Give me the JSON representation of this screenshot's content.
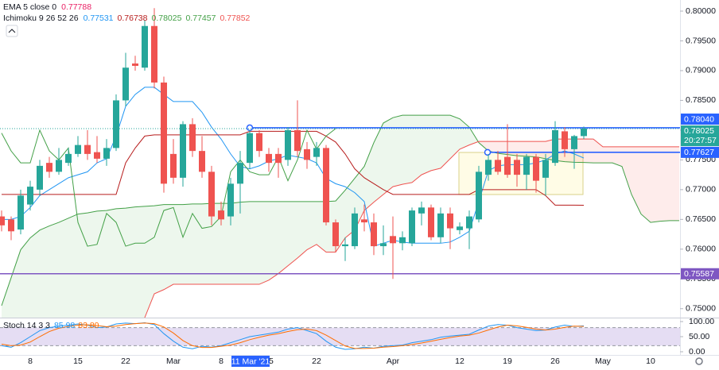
{
  "chart_data": [
    {
      "type": "candlestick",
      "categories": [
        null,
        null,
        null,
        "8",
        null,
        null,
        null,
        null,
        "15",
        null,
        null,
        null,
        null,
        "22",
        null,
        null,
        null,
        null,
        "Mar",
        null,
        null,
        null,
        null,
        "8",
        null,
        null,
        "11 Mar '21",
        null,
        "15",
        null,
        null,
        null,
        null,
        "22",
        null,
        null,
        null,
        null,
        null,
        null,
        null,
        "Apr",
        null,
        null,
        null,
        null,
        null,
        null,
        "12",
        null,
        null,
        null,
        null,
        "19",
        null,
        null,
        null,
        null,
        "26",
        null,
        null,
        null,
        null,
        "May",
        null,
        null,
        null,
        null,
        "10",
        null,
        null,
        null
      ],
      "open": [
        0.7655,
        0.765,
        0.7633,
        0.7675,
        0.77,
        0.7745,
        0.773,
        0.7745,
        0.776,
        0.7775,
        0.7763,
        0.7752,
        0.777,
        0.785,
        0.7912,
        0.7905,
        0.7975,
        0.788,
        0.776,
        0.772,
        0.781,
        0.7765,
        0.773,
        0.7665,
        0.7655,
        0.771,
        0.7745,
        0.7795,
        0.776,
        0.776,
        0.775,
        0.78,
        0.7768,
        0.7755,
        0.777,
        0.7645,
        0.7605,
        0.7605,
        0.765,
        0.7645,
        0.7605,
        0.7622,
        0.761,
        0.761,
        0.766,
        0.767,
        0.762,
        0.766,
        0.7632,
        0.7635,
        0.765,
        0.7725,
        0.775,
        0.7755,
        0.775,
        0.7725,
        0.7755,
        0.772,
        0.7745,
        0.7798,
        0.7768,
        0.779,
        null,
        null,
        null,
        null,
        null,
        null,
        null,
        null,
        null,
        null
      ],
      "high": [
        0.7665,
        0.7655,
        0.77,
        0.7715,
        0.775,
        0.7755,
        0.777,
        0.777,
        0.779,
        0.78,
        0.779,
        0.7785,
        0.786,
        0.793,
        0.7925,
        0.7985,
        0.8005,
        0.789,
        0.7785,
        0.7815,
        0.782,
        0.779,
        0.774,
        0.768,
        0.772,
        0.7765,
        0.78,
        0.78,
        0.777,
        0.777,
        0.7805,
        0.785,
        0.778,
        0.778,
        0.7775,
        0.765,
        0.762,
        0.767,
        0.7675,
        0.766,
        0.764,
        0.7655,
        0.763,
        0.767,
        0.768,
        0.7675,
        0.767,
        0.767,
        0.7645,
        0.7665,
        0.774,
        0.776,
        0.7765,
        0.781,
        0.776,
        0.776,
        0.776,
        0.776,
        0.7815,
        0.7805,
        0.7792,
        0.7806,
        null,
        null,
        null,
        null,
        null,
        null,
        null,
        null,
        null,
        null
      ],
      "low": [
        0.763,
        0.7615,
        0.7625,
        0.7665,
        0.769,
        0.772,
        0.7725,
        0.774,
        0.7755,
        0.775,
        0.7745,
        0.774,
        0.7765,
        0.784,
        0.79,
        0.79,
        0.787,
        0.7695,
        0.771,
        0.7705,
        0.7755,
        0.772,
        0.764,
        0.764,
        0.764,
        0.766,
        0.7735,
        0.7755,
        0.773,
        0.772,
        0.774,
        0.7755,
        0.7735,
        0.774,
        0.764,
        0.7595,
        0.758,
        0.76,
        0.763,
        0.759,
        0.759,
        0.755,
        0.7598,
        0.7605,
        0.764,
        0.7615,
        0.761,
        0.76,
        0.7625,
        0.76,
        0.7645,
        0.7715,
        0.7725,
        0.772,
        0.7705,
        0.77,
        0.7695,
        0.769,
        0.774,
        0.7755,
        0.7735,
        0.7785,
        null,
        null,
        null,
        null,
        null,
        null,
        null,
        null,
        null,
        null
      ],
      "close": [
        0.764,
        0.763,
        0.769,
        0.7705,
        0.774,
        0.773,
        0.775,
        0.776,
        0.7775,
        0.776,
        0.7752,
        0.777,
        0.785,
        0.7905,
        0.7908,
        0.7975,
        0.788,
        0.771,
        0.772,
        0.781,
        0.7765,
        0.773,
        0.7655,
        0.765,
        0.771,
        0.7745,
        0.7795,
        0.7765,
        0.7745,
        0.7745,
        0.78,
        0.7765,
        0.775,
        0.777,
        0.7645,
        0.7605,
        0.7608,
        0.766,
        0.7645,
        0.7605,
        0.761,
        0.761,
        0.762,
        0.7665,
        0.767,
        0.762,
        0.766,
        0.7635,
        0.7638,
        0.7655,
        0.773,
        0.775,
        0.773,
        0.7725,
        0.7725,
        0.7755,
        0.7715,
        0.775,
        0.78,
        0.7768,
        0.779,
        0.78025,
        null,
        null,
        null,
        null,
        null,
        null,
        null,
        null,
        null,
        null
      ],
      "up_color": "#26a69a",
      "down_color": "#ef5350",
      "ylim": [
        0.7485,
        0.8012
      ],
      "yticks": [
        {
          "value": 0.75,
          "label": "0.75000"
        },
        {
          "value": 0.755,
          "label": "0.75500"
        },
        {
          "value": 0.76,
          "label": "0.76000"
        },
        {
          "value": 0.765,
          "label": "0.76500"
        },
        {
          "value": 0.77,
          "label": "0.77000"
        },
        {
          "value": 0.775,
          "label": "0.77500"
        },
        {
          "value": 0.78,
          "label": "0.78000"
        },
        {
          "value": 0.785,
          "label": "0.78500"
        },
        {
          "value": 0.79,
          "label": "0.79000"
        },
        {
          "value": 0.795,
          "label": "0.79500"
        },
        {
          "value": 0.8,
          "label": "0.80000"
        }
      ],
      "cloud": {
        "span_a": [
          0.7505,
          0.7552,
          0.7599,
          0.7619,
          0.7632,
          0.7639,
          0.7645,
          0.7652,
          0.7659,
          0.7661,
          0.7664,
          0.7665,
          0.7668,
          0.7669,
          0.7671,
          0.7672,
          0.7673,
          0.7675,
          0.7675,
          0.7675,
          0.7676,
          0.7676,
          0.7677,
          0.7677,
          0.7677,
          0.7679,
          0.768,
          0.768,
          0.768,
          0.768,
          0.768,
          0.768,
          0.768,
          0.768,
          0.768,
          0.7681,
          0.7699,
          0.7719,
          0.7739,
          0.7779,
          0.7812,
          0.7821,
          0.7825,
          0.7825,
          0.7825,
          0.7825,
          0.7825,
          0.7825,
          0.7819,
          0.7805,
          0.7779,
          0.7765,
          0.7761,
          0.7759,
          0.7757,
          0.7756,
          0.7755,
          0.7752,
          0.7749,
          0.7747,
          0.7746,
          0.77457,
          0.7745,
          0.7745,
          0.7745,
          0.7739,
          0.7692,
          0.7659,
          0.7645,
          0.7647,
          0.7648,
          0.7648
        ],
        "span_b": [
          0.747,
          0.747,
          0.747,
          0.747,
          0.747,
          0.747,
          0.747,
          0.747,
          0.747,
          0.747,
          0.747,
          0.747,
          0.747,
          0.747,
          0.747,
          0.7485,
          0.7525,
          0.7532,
          0.7541,
          0.7541,
          0.7541,
          0.7541,
          0.7541,
          0.7541,
          0.7541,
          0.7541,
          0.7541,
          0.7541,
          0.7548,
          0.7559,
          0.7572,
          0.7585,
          0.7599,
          0.7608,
          0.7595,
          0.7595,
          0.7619,
          0.7632,
          0.7665,
          0.7679,
          0.7692,
          0.7705,
          0.7709,
          0.7712,
          0.7725,
          0.7732,
          0.7736,
          0.7752,
          0.7768,
          0.7775,
          0.7781,
          0.7781,
          0.7781,
          0.7781,
          0.7781,
          0.7781,
          0.7781,
          0.7781,
          0.7785,
          0.7785,
          0.7785,
          0.77852,
          0.7785,
          0.7772,
          0.7772,
          0.7772,
          0.7772,
          0.7772,
          0.7772,
          0.7772,
          0.7772,
          0.7772
        ],
        "a_color": "#43a047",
        "b_color": "#ef5350",
        "up_fill": "#4caf50",
        "down_fill": "#f44336"
      },
      "lines": [
        {
          "color": "#2196f3",
          "values": [
            0.765,
            0.765,
            0.7655,
            0.767,
            0.769,
            0.77,
            0.771,
            0.772,
            0.7725,
            0.773,
            0.7745,
            0.7752,
            0.779,
            0.784,
            0.786,
            0.7872,
            0.7872,
            0.786,
            0.7848,
            0.7848,
            0.7848,
            0.783,
            0.7805,
            0.7785,
            0.776,
            0.7739,
            0.7735,
            0.774,
            0.7748,
            0.7752,
            0.7758,
            0.7755,
            0.7752,
            0.7745,
            0.7719,
            0.771,
            0.7705,
            0.7695,
            0.768,
            0.7605,
            0.761,
            0.7615,
            0.7612,
            0.761,
            0.761,
            0.761,
            0.761,
            0.7612,
            0.762,
            0.763,
            0.768,
            0.7732,
            0.774,
            0.7742,
            0.7742,
            0.7742,
            0.7745,
            0.775,
            0.776,
            0.7765,
            0.776,
            0.77531,
            null,
            null,
            null,
            null,
            null,
            null,
            null,
            null,
            null,
            null
          ]
        },
        {
          "color": "#b71c1c",
          "values": [
            0.7692,
            0.7692,
            0.7692,
            0.7692,
            0.7692,
            0.7692,
            0.7692,
            0.7692,
            0.7692,
            0.7692,
            0.7692,
            0.7692,
            0.7692,
            0.7745,
            0.777,
            0.779,
            0.7792,
            0.7792,
            0.7792,
            0.7792,
            0.7792,
            0.7792,
            0.7792,
            0.7792,
            0.7792,
            0.7792,
            0.7798,
            0.7798,
            0.7798,
            0.7798,
            0.7798,
            0.7798,
            0.7798,
            0.7798,
            0.779,
            0.778,
            0.776,
            0.7735,
            0.772,
            0.771,
            0.77,
            0.7692,
            0.7692,
            0.7692,
            0.7692,
            0.7692,
            0.7692,
            0.7692,
            0.7692,
            0.7692,
            0.77,
            0.77,
            0.77,
            0.77,
            0.77,
            0.77,
            0.77,
            0.769,
            0.7674,
            0.7674,
            0.7674,
            0.76738,
            null,
            null,
            null,
            null,
            null,
            null,
            null,
            null,
            null,
            null
          ]
        },
        {
          "color": "#43a047",
          "values": [
            0.7795,
            0.7765,
            0.7745,
            0.7745,
            0.78,
            0.7765,
            0.775,
            0.777,
            0.7645,
            0.7605,
            0.7608,
            0.766,
            0.7645,
            0.7605,
            0.761,
            0.761,
            0.762,
            0.7665,
            0.767,
            0.762,
            0.766,
            0.7635,
            0.7638,
            0.7655,
            0.773,
            0.775,
            0.773,
            0.7725,
            0.7725,
            0.7755,
            0.7715,
            0.775,
            0.78,
            0.7768,
            0.779,
            0.78025,
            null,
            null,
            null,
            null,
            null,
            null,
            null,
            null,
            null,
            null,
            null,
            null,
            null,
            null,
            null,
            null,
            null,
            null,
            null,
            null,
            null,
            null,
            null,
            null,
            null,
            null,
            null,
            null,
            null,
            null,
            null,
            null,
            null,
            null,
            null,
            null
          ]
        }
      ],
      "hlines": [
        {
          "value": 0.7804,
          "label": "0.78040",
          "color": "#2962ff"
        },
        {
          "value": 0.77627,
          "label": "0.77627",
          "color": "#2962ff"
        },
        {
          "value": 0.75587,
          "label": "0.75587",
          "color": "#7e57c2"
        }
      ],
      "last": {
        "value": 0.78025,
        "label": "0.78025",
        "time": "20:27:57",
        "color": "#26a69a"
      },
      "indicators": [
        {
          "label": "EMA 5 close 0",
          "readings": [
            0.77788
          ],
          "colors": [
            "#e91e63"
          ]
        },
        {
          "label": "Ichimoku 9 26 52 26",
          "readings": [
            0.77531,
            0.76738,
            0.78025,
            0.77457,
            0.77852
          ],
          "colors": [
            "#2196f3",
            "#b71c1c",
            "#43a047",
            "#43a047",
            "#ef5350"
          ]
        }
      ]
    },
    {
      "type": "line",
      "title": "Stoch 14 3 3",
      "readings": [
        85.98,
        {
          "value": 83.8,
          "label": "83.80"
        }
      ],
      "series": [
        {
          "color": "#2196f3",
          "values": [
            20,
            15,
            30,
            50,
            70,
            80,
            85,
            88,
            92,
            88,
            80,
            82,
            92,
            95,
            93,
            96,
            90,
            60,
            35,
            15,
            10,
            18,
            15,
            20,
            30,
            40,
            50,
            55,
            60,
            65,
            75,
            80,
            70,
            60,
            35,
            15,
            8,
            10,
            15,
            12,
            18,
            20,
            22,
            30,
            35,
            40,
            48,
            52,
            55,
            58,
            72,
            85,
            90,
            88,
            80,
            75,
            70,
            72,
            82,
            88,
            84,
            85.98,
            null,
            null,
            null,
            null,
            null,
            null,
            null,
            null,
            null,
            null
          ]
        },
        {
          "color": "#ff6d00",
          "values": [
            25,
            20,
            22,
            32,
            50,
            67,
            78,
            84,
            88,
            89,
            87,
            83,
            85,
            90,
            93,
            95,
            93,
            82,
            62,
            37,
            20,
            14,
            14,
            18,
            22,
            30,
            40,
            48,
            55,
            60,
            67,
            73,
            75,
            70,
            55,
            37,
            19,
            11,
            11,
            12,
            15,
            17,
            20,
            24,
            29,
            35,
            41,
            47,
            52,
            55,
            62,
            72,
            82,
            88,
            86,
            81,
            75,
            72,
            75,
            81,
            85,
            83.8,
            null,
            null,
            null,
            null,
            null,
            null,
            null,
            null,
            null,
            null
          ]
        }
      ],
      "ylim": [
        0,
        100
      ],
      "yticks": [
        {
          "value": 0,
          "label": "0.00"
        },
        {
          "value": 50,
          "label": "50.00"
        },
        {
          "value": 100,
          "label": "100.00"
        }
      ],
      "band": [
        20,
        80
      ],
      "band_color": "#7e57c2"
    }
  ]
}
